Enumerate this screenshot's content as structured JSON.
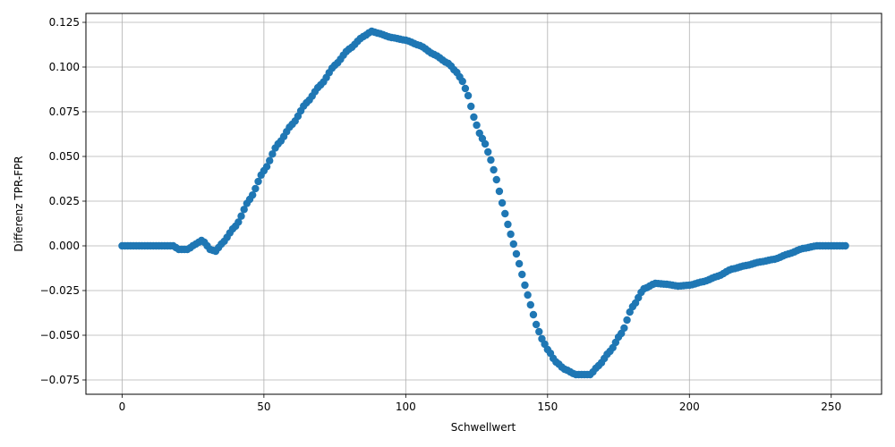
{
  "chart_data": {
    "type": "scatter",
    "title": "",
    "xlabel": "Schwellwert",
    "ylabel": "Differenz TPR-FPR",
    "xlim": [
      -12.75,
      267.75
    ],
    "ylim": [
      -0.083,
      0.13
    ],
    "grid": true,
    "marker_color": "#1f77b4",
    "x_ticks": [
      0,
      50,
      100,
      150,
      200,
      250
    ],
    "x_tick_labels": [
      "0",
      "50",
      "100",
      "150",
      "200",
      "250"
    ],
    "y_ticks": [
      -0.075,
      -0.05,
      -0.025,
      0.0,
      0.025,
      0.05,
      0.075,
      0.1,
      0.125
    ],
    "y_tick_labels": [
      "−0.075",
      "−0.050",
      "−0.025",
      "0.000",
      "0.025",
      "0.050",
      "0.075",
      "0.100",
      "0.125"
    ],
    "anchors": [
      [
        0,
        0.0
      ],
      [
        18,
        0.0
      ],
      [
        20,
        -0.002
      ],
      [
        23,
        -0.002
      ],
      [
        26,
        0.001
      ],
      [
        28,
        0.003
      ],
      [
        29,
        0.002
      ],
      [
        31,
        -0.002
      ],
      [
        33,
        -0.003
      ],
      [
        35,
        0.001
      ],
      [
        40,
        0.011
      ],
      [
        45,
        0.026
      ],
      [
        50,
        0.042
      ],
      [
        55,
        0.057
      ],
      [
        60,
        0.068
      ],
      [
        65,
        0.08
      ],
      [
        70,
        0.09
      ],
      [
        75,
        0.101
      ],
      [
        80,
        0.11
      ],
      [
        85,
        0.117
      ],
      [
        88,
        0.12
      ],
      [
        90,
        0.119
      ],
      [
        95,
        0.1165
      ],
      [
        100,
        0.115
      ],
      [
        105,
        0.112
      ],
      [
        110,
        0.107
      ],
      [
        115,
        0.102
      ],
      [
        118,
        0.097
      ],
      [
        120,
        0.092
      ],
      [
        122,
        0.084
      ],
      [
        124,
        0.072
      ],
      [
        126,
        0.063
      ],
      [
        128,
        0.057
      ],
      [
        130,
        0.048
      ],
      [
        132,
        0.037
      ],
      [
        134,
        0.024
      ],
      [
        136,
        0.012
      ],
      [
        138,
        0.001
      ],
      [
        140,
        -0.01
      ],
      [
        142,
        -0.022
      ],
      [
        144,
        -0.033
      ],
      [
        146,
        -0.044
      ],
      [
        148,
        -0.052
      ],
      [
        150,
        -0.058
      ],
      [
        153,
        -0.065
      ],
      [
        156,
        -0.069
      ],
      [
        160,
        -0.072
      ],
      [
        165,
        -0.072
      ],
      [
        168,
        -0.067
      ],
      [
        172,
        -0.059
      ],
      [
        176,
        -0.049
      ],
      [
        180,
        -0.034
      ],
      [
        184,
        -0.024
      ],
      [
        188,
        -0.021
      ],
      [
        192,
        -0.0215
      ],
      [
        196,
        -0.0225
      ],
      [
        200,
        -0.022
      ],
      [
        205,
        -0.02
      ],
      [
        210,
        -0.017
      ],
      [
        215,
        -0.013
      ],
      [
        220,
        -0.011
      ],
      [
        225,
        -0.009
      ],
      [
        230,
        -0.0075
      ],
      [
        235,
        -0.0045
      ],
      [
        240,
        -0.0015
      ],
      [
        245,
        0.0
      ],
      [
        255,
        0.0
      ]
    ]
  }
}
